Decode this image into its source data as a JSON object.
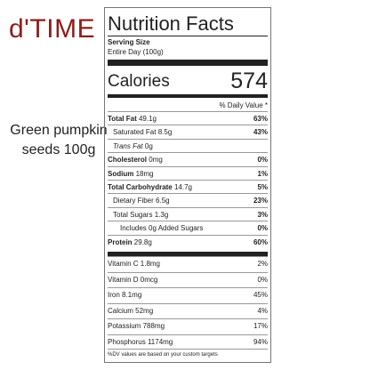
{
  "brand": "d'TIME",
  "caption": "Green pumpkin seeds 100g",
  "label": {
    "title": "Nutrition Facts",
    "serving_size_label": "Serving Size",
    "serving_size": "Entire Day (100g)",
    "calories_label": "Calories",
    "calories": "574",
    "daily_value_header": "% Daily Value *",
    "rows": [
      {
        "name": "Total Fat",
        "amount": "49.1g",
        "dv": "63%"
      },
      {
        "name": "Saturated Fat",
        "amount": "8.5g",
        "dv": "43%"
      },
      {
        "name": "Trans Fat",
        "amount": "0g",
        "dv": null
      },
      {
        "name": "Cholesterol",
        "amount": "0mg",
        "dv": "0%"
      },
      {
        "name": "Sodium",
        "amount": "18mg",
        "dv": "1%"
      },
      {
        "name": "Total Carbohydrate",
        "amount": "14.7g",
        "dv": "5%"
      },
      {
        "name": "Dietary Fiber",
        "amount": "6.5g",
        "dv": "23%"
      },
      {
        "name": "Total Sugars",
        "amount": "1.3g",
        "dv": "3%"
      },
      {
        "name": "Includes 0g Added Sugars",
        "amount": null,
        "dv": "0%"
      },
      {
        "name": "Protein",
        "amount": "29.8g",
        "dv": "60%"
      }
    ],
    "micros": [
      {
        "name": "Vitamin C",
        "amount": "1.8mg",
        "dv": "2%"
      },
      {
        "name": "Vitamin D",
        "amount": "0mcg",
        "dv": "0%"
      },
      {
        "name": "Iron",
        "amount": "8.1mg",
        "dv": "45%"
      },
      {
        "name": "Calcium",
        "amount": "52mg",
        "dv": "4%"
      },
      {
        "name": "Potassium",
        "amount": "788mg",
        "dv": "17%"
      },
      {
        "name": "Phosphorus",
        "amount": "1174mg",
        "dv": "94%"
      }
    ],
    "footnote": "%DV values are based on your custom targets"
  }
}
